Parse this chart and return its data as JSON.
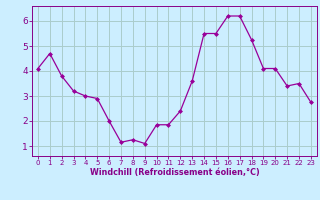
{
  "x": [
    0,
    1,
    2,
    3,
    4,
    5,
    6,
    7,
    8,
    9,
    10,
    11,
    12,
    13,
    14,
    15,
    16,
    17,
    18,
    19,
    20,
    21,
    22,
    23
  ],
  "y": [
    4.1,
    4.7,
    3.8,
    3.2,
    3.0,
    2.9,
    2.0,
    1.15,
    1.25,
    1.1,
    1.85,
    1.85,
    2.4,
    3.6,
    5.5,
    5.5,
    6.2,
    6.2,
    5.25,
    4.1,
    4.1,
    3.4,
    3.5,
    2.75
  ],
  "line_color": "#990099",
  "marker_color": "#990099",
  "bg_color": "#cceeff",
  "grid_color": "#aacccc",
  "xlabel": "Windchill (Refroidissement éolien,°C)",
  "ylim": [
    0.6,
    6.6
  ],
  "xlim": [
    -0.5,
    23.5
  ],
  "yticks": [
    1,
    2,
    3,
    4,
    5,
    6
  ],
  "xticks": [
    0,
    1,
    2,
    3,
    4,
    5,
    6,
    7,
    8,
    9,
    10,
    11,
    12,
    13,
    14,
    15,
    16,
    17,
    18,
    19,
    20,
    21,
    22,
    23
  ],
  "tick_color": "#880088",
  "axis_color": "#880088",
  "xlabel_fontsize": 5.8,
  "xlabel_fontweight": "bold",
  "ytick_fontsize": 6.5,
  "xtick_fontsize": 5.0
}
